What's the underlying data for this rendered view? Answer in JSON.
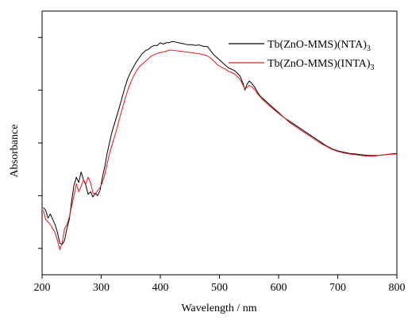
{
  "chart_data": {
    "type": "line",
    "xlabel": "Wavelength / nm",
    "ylabel": "Absorbance",
    "xlim": [
      200,
      800
    ],
    "xticks": [
      200,
      300,
      400,
      500,
      600,
      700,
      800
    ],
    "yticks_labeled": false,
    "ylim": [
      0,
      1
    ],
    "legend_position": "top-right",
    "series": [
      {
        "name": "Tb(ZnO-MMS)(NTA)",
        "name_subscript": "3",
        "color": "#000000",
        "x": [
          202,
          206,
          210,
          214,
          218,
          222,
          226,
          230,
          234,
          238,
          242,
          246,
          250,
          254,
          258,
          262,
          266,
          270,
          274,
          278,
          282,
          286,
          290,
          294,
          298,
          302,
          306,
          310,
          314,
          318,
          322,
          326,
          330,
          335,
          340,
          345,
          350,
          355,
          360,
          365,
          370,
          375,
          380,
          385,
          390,
          395,
          400,
          405,
          410,
          415,
          420,
          425,
          430,
          435,
          440,
          445,
          450,
          455,
          460,
          465,
          470,
          475,
          480,
          485,
          490,
          495,
          500,
          505,
          510,
          515,
          520,
          525,
          530,
          535,
          540,
          543,
          546,
          550,
          555,
          560,
          565,
          570,
          575,
          580,
          590,
          600,
          610,
          620,
          630,
          640,
          650,
          660,
          670,
          680,
          690,
          700,
          710,
          720,
          730,
          740,
          750,
          760,
          770,
          780,
          790,
          800
        ],
        "y": [
          0.255,
          0.245,
          0.215,
          0.23,
          0.21,
          0.19,
          0.16,
          0.12,
          0.115,
          0.13,
          0.175,
          0.21,
          0.28,
          0.34,
          0.37,
          0.35,
          0.39,
          0.36,
          0.34,
          0.305,
          0.315,
          0.295,
          0.31,
          0.3,
          0.32,
          0.37,
          0.41,
          0.46,
          0.5,
          0.54,
          0.57,
          0.6,
          0.63,
          0.67,
          0.71,
          0.745,
          0.77,
          0.79,
          0.81,
          0.825,
          0.84,
          0.85,
          0.855,
          0.865,
          0.87,
          0.87,
          0.88,
          0.875,
          0.88,
          0.88,
          0.885,
          0.883,
          0.88,
          0.878,
          0.876,
          0.873,
          0.873,
          0.872,
          0.87,
          0.872,
          0.868,
          0.866,
          0.865,
          0.85,
          0.835,
          0.825,
          0.815,
          0.805,
          0.795,
          0.785,
          0.78,
          0.775,
          0.765,
          0.752,
          0.725,
          0.7,
          0.72,
          0.735,
          0.725,
          0.71,
          0.69,
          0.675,
          0.665,
          0.655,
          0.635,
          0.615,
          0.595,
          0.58,
          0.565,
          0.55,
          0.535,
          0.52,
          0.505,
          0.49,
          0.478,
          0.47,
          0.465,
          0.46,
          0.458,
          0.455,
          0.453,
          0.452,
          0.453,
          0.455,
          0.458,
          0.46
        ]
      },
      {
        "name": "Tb(ZnO-MMS)(INTA)",
        "name_subscript": "3",
        "color": "#e31a1c",
        "x": [
          202,
          206,
          210,
          214,
          218,
          222,
          226,
          230,
          234,
          238,
          242,
          246,
          250,
          254,
          258,
          262,
          266,
          270,
          274,
          278,
          282,
          286,
          290,
          294,
          298,
          302,
          306,
          310,
          314,
          318,
          322,
          326,
          330,
          335,
          340,
          345,
          350,
          355,
          360,
          365,
          370,
          375,
          380,
          385,
          390,
          395,
          400,
          405,
          410,
          415,
          420,
          425,
          430,
          435,
          440,
          445,
          450,
          455,
          460,
          465,
          470,
          475,
          480,
          485,
          490,
          495,
          500,
          505,
          510,
          515,
          520,
          525,
          530,
          535,
          540,
          543,
          546,
          550,
          555,
          560,
          565,
          570,
          575,
          580,
          590,
          600,
          610,
          620,
          630,
          640,
          650,
          660,
          670,
          680,
          690,
          700,
          710,
          720,
          730,
          740,
          750,
          760,
          770,
          780,
          790,
          800
        ],
        "y": [
          0.245,
          0.21,
          0.2,
          0.19,
          0.175,
          0.16,
          0.13,
          0.095,
          0.12,
          0.175,
          0.19,
          0.22,
          0.26,
          0.3,
          0.345,
          0.315,
          0.335,
          0.36,
          0.345,
          0.37,
          0.35,
          0.31,
          0.305,
          0.32,
          0.33,
          0.35,
          0.38,
          0.42,
          0.46,
          0.49,
          0.52,
          0.55,
          0.585,
          0.625,
          0.665,
          0.7,
          0.73,
          0.755,
          0.775,
          0.79,
          0.8,
          0.81,
          0.82,
          0.83,
          0.835,
          0.84,
          0.843,
          0.845,
          0.848,
          0.852,
          0.852,
          0.85,
          0.849,
          0.848,
          0.846,
          0.845,
          0.843,
          0.842,
          0.84,
          0.839,
          0.836,
          0.833,
          0.83,
          0.822,
          0.812,
          0.8,
          0.792,
          0.785,
          0.78,
          0.772,
          0.768,
          0.762,
          0.752,
          0.74,
          0.718,
          0.705,
          0.71,
          0.718,
          0.712,
          0.7,
          0.685,
          0.672,
          0.66,
          0.65,
          0.63,
          0.612,
          0.595,
          0.575,
          0.56,
          0.545,
          0.53,
          0.515,
          0.5,
          0.488,
          0.476,
          0.468,
          0.462,
          0.458,
          0.455,
          0.452,
          0.45,
          0.45,
          0.452,
          0.455,
          0.457,
          0.458
        ]
      }
    ]
  }
}
